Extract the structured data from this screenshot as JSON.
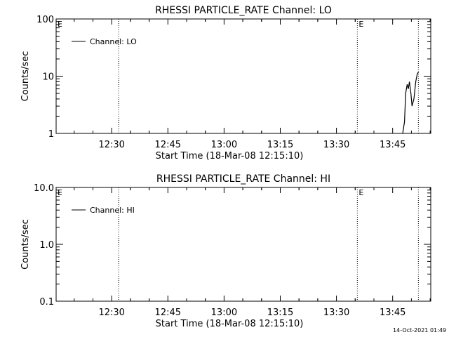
{
  "footer": {
    "timestamp": "14-Oct-2021 01:49"
  },
  "chart_data": [
    {
      "type": "line",
      "title": "RHESSI PARTICLE_RATE Channel: LO",
      "xlabel": "Start Time (18-Mar-08 12:15:10)",
      "ylabel": "Counts/sec",
      "yscale": "log",
      "ylim": [
        1,
        100
      ],
      "xlim_minutes": [
        0,
        100
      ],
      "yticks": [
        {
          "value": 1,
          "label": "1"
        },
        {
          "value": 10,
          "label": "10"
        },
        {
          "value": 100,
          "label": "100"
        }
      ],
      "xticks": [
        {
          "minute": 14.83,
          "label": "12:30"
        },
        {
          "minute": 29.83,
          "label": "12:45"
        },
        {
          "minute": 44.83,
          "label": "13:00"
        },
        {
          "minute": 59.83,
          "label": "13:15"
        },
        {
          "minute": 74.83,
          "label": "13:30"
        },
        {
          "minute": 89.83,
          "label": "13:45"
        }
      ],
      "event_lines": [
        {
          "minute": 16.7,
          "label": ""
        },
        {
          "minute": 80.4,
          "label": "E"
        },
        {
          "minute": 96.7,
          "label": ""
        }
      ],
      "corner_label": "E",
      "legend": {
        "position": "top-left",
        "label": "Channel: LO"
      },
      "series": [
        {
          "name": "Channel: LO",
          "x": [
            92.5,
            93.0,
            93.3,
            93.7,
            94.0,
            94.3,
            94.7,
            95.0,
            95.5,
            96.0,
            96.4,
            96.8
          ],
          "y": [
            1.0,
            1.6,
            5.0,
            7.2,
            6.0,
            8.0,
            5.0,
            3.0,
            4.0,
            8.0,
            11.0,
            12.0
          ]
        }
      ]
    },
    {
      "type": "line",
      "title": "RHESSI PARTICLE_RATE Channel: HI",
      "xlabel": "Start Time (18-Mar-08 12:15:10)",
      "ylabel": "Counts/sec",
      "yscale": "log",
      "ylim": [
        0.1,
        10
      ],
      "xlim_minutes": [
        0,
        100
      ],
      "yticks": [
        {
          "value": 0.1,
          "label": "0.1"
        },
        {
          "value": 1,
          "label": "1.0"
        },
        {
          "value": 10,
          "label": "10.0"
        }
      ],
      "xticks": [
        {
          "minute": 14.83,
          "label": "12:30"
        },
        {
          "minute": 29.83,
          "label": "12:45"
        },
        {
          "minute": 44.83,
          "label": "13:00"
        },
        {
          "minute": 59.83,
          "label": "13:15"
        },
        {
          "minute": 74.83,
          "label": "13:30"
        },
        {
          "minute": 89.83,
          "label": "13:45"
        }
      ],
      "event_lines": [
        {
          "minute": 16.7,
          "label": ""
        },
        {
          "minute": 80.4,
          "label": "E"
        },
        {
          "minute": 96.7,
          "label": ""
        }
      ],
      "corner_label": "E",
      "legend": {
        "position": "top-left",
        "label": "Channel: HI"
      },
      "series": [
        {
          "name": "Channel: HI",
          "x": [],
          "y": []
        }
      ]
    }
  ]
}
